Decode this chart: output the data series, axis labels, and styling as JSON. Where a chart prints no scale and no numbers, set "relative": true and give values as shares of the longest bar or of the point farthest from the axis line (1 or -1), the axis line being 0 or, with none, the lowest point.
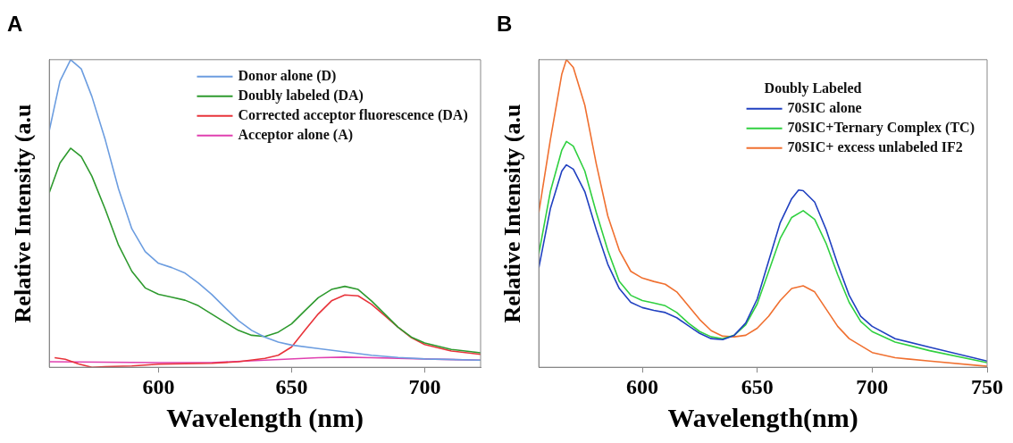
{
  "chart_data": [
    {
      "type": "line",
      "title": "A",
      "xlabel": "Wavelength (nm)",
      "ylabel": "Relative Intensity (a.u",
      "relative": true,
      "xlim": [
        559,
        721
      ],
      "xticks": [
        600,
        650,
        700
      ],
      "grid": false,
      "legend": "top right",
      "marker": "none",
      "line_style": "solid",
      "series": [
        {
          "name": "Donor alone (D)",
          "color": "#6c9de0",
          "x": [
            559,
            563,
            567,
            571,
            575,
            580,
            585,
            590,
            595,
            600,
            605,
            610,
            615,
            620,
            625,
            630,
            635,
            640,
            645,
            650,
            660,
            670,
            680,
            690,
            700,
            721
          ],
          "values": [
            0.77,
            0.93,
            1.0,
            0.97,
            0.88,
            0.74,
            0.58,
            0.45,
            0.376,
            0.338,
            0.324,
            0.306,
            0.274,
            0.237,
            0.194,
            0.152,
            0.12,
            0.098,
            0.082,
            0.072,
            0.061,
            0.05,
            0.039,
            0.032,
            0.027,
            0.023
          ]
        },
        {
          "name": "Doubly labeled (DA)",
          "color": "#2e9a2e",
          "x": [
            559,
            563,
            567,
            571,
            575,
            580,
            585,
            590,
            595,
            600,
            605,
            610,
            615,
            620,
            625,
            630,
            635,
            640,
            645,
            650,
            655,
            660,
            665,
            670,
            675,
            680,
            685,
            690,
            695,
            700,
            710,
            721
          ],
          "values": [
            0.568,
            0.664,
            0.712,
            0.685,
            0.621,
            0.514,
            0.397,
            0.312,
            0.258,
            0.237,
            0.228,
            0.218,
            0.2,
            0.173,
            0.146,
            0.12,
            0.104,
            0.1,
            0.114,
            0.141,
            0.184,
            0.226,
            0.253,
            0.263,
            0.253,
            0.216,
            0.173,
            0.13,
            0.098,
            0.079,
            0.058,
            0.047
          ]
        },
        {
          "name": "Corrected acceptor fluorescence (DA)",
          "color": "#e8333a",
          "x": [
            561,
            565,
            570,
            575,
            580,
            590,
            600,
            620,
            630,
            640,
            645,
            650,
            655,
            660,
            665,
            670,
            675,
            680,
            685,
            690,
            695,
            700,
            710,
            721
          ],
          "values": [
            0.031,
            0.026,
            0.011,
            0,
            0.002,
            0.004,
            0.01,
            0.013,
            0.018,
            0.029,
            0.039,
            0.066,
            0.12,
            0.173,
            0.216,
            0.235,
            0.232,
            0.205,
            0.168,
            0.13,
            0.096,
            0.074,
            0.053,
            0.042
          ]
        },
        {
          "name": "Acceptor alone (A)",
          "color": "#e040b0",
          "x": [
            559,
            600,
            620,
            640,
            660,
            670,
            680,
            700,
            721
          ],
          "values": [
            0.018,
            0.015,
            0.015,
            0.023,
            0.031,
            0.033,
            0.031,
            0.027,
            0.023
          ]
        }
      ]
    },
    {
      "type": "line",
      "title": "B",
      "xlabel": "Wavelength(nm)",
      "ylabel": "Relative Intensity (a.u",
      "relative": true,
      "xlim": [
        555,
        750
      ],
      "xticks": [
        600,
        650,
        700,
        750
      ],
      "grid": false,
      "legend": "top right",
      "legend_title": "Doubly Labeled",
      "marker": "none",
      "line_style": "solid",
      "series": [
        {
          "name": "70SIC alone",
          "color": "#2040c0",
          "x": [
            555,
            560,
            565,
            567,
            570,
            575,
            580,
            585,
            590,
            595,
            600,
            605,
            610,
            615,
            620,
            625,
            630,
            635,
            640,
            645,
            650,
            655,
            660,
            665,
            668,
            670,
            675,
            680,
            685,
            690,
            695,
            700,
            710,
            725,
            750
          ],
          "values": [
            0.324,
            0.515,
            0.638,
            0.658,
            0.644,
            0.571,
            0.447,
            0.335,
            0.256,
            0.211,
            0.194,
            0.185,
            0.178,
            0.161,
            0.135,
            0.11,
            0.093,
            0.09,
            0.104,
            0.144,
            0.222,
            0.346,
            0.47,
            0.548,
            0.576,
            0.574,
            0.537,
            0.447,
            0.335,
            0.234,
            0.166,
            0.133,
            0.093,
            0.065,
            0.02
          ]
        },
        {
          "name": "70SIC+Ternary Complex (TC)",
          "color": "#30d040",
          "x": [
            555,
            560,
            565,
            567,
            570,
            575,
            580,
            585,
            590,
            595,
            600,
            605,
            610,
            615,
            620,
            625,
            630,
            635,
            640,
            645,
            650,
            655,
            660,
            665,
            670,
            675,
            680,
            685,
            690,
            695,
            700,
            710,
            725,
            750
          ],
          "values": [
            0.369,
            0.571,
            0.706,
            0.734,
            0.719,
            0.638,
            0.503,
            0.38,
            0.279,
            0.234,
            0.217,
            0.209,
            0.2,
            0.178,
            0.144,
            0.116,
            0.099,
            0.093,
            0.104,
            0.138,
            0.206,
            0.312,
            0.419,
            0.487,
            0.509,
            0.481,
            0.402,
            0.301,
            0.211,
            0.149,
            0.116,
            0.082,
            0.054,
            0.015
          ]
        },
        {
          "name": "70SIC+ excess unlabeled IF2",
          "color": "#f07030",
          "x": [
            555,
            560,
            565,
            567,
            570,
            575,
            580,
            585,
            590,
            595,
            600,
            605,
            610,
            615,
            620,
            625,
            630,
            635,
            640,
            645,
            650,
            655,
            660,
            665,
            670,
            675,
            680,
            685,
            690,
            700,
            710,
            725,
            750
          ],
          "values": [
            0.503,
            0.739,
            0.953,
            1.0,
            0.975,
            0.852,
            0.661,
            0.492,
            0.38,
            0.312,
            0.29,
            0.279,
            0.27,
            0.245,
            0.2,
            0.155,
            0.119,
            0.101,
            0.099,
            0.104,
            0.127,
            0.166,
            0.217,
            0.256,
            0.265,
            0.245,
            0.189,
            0.133,
            0.093,
            0.048,
            0.031,
            0.02,
            0.003
          ]
        }
      ]
    }
  ]
}
